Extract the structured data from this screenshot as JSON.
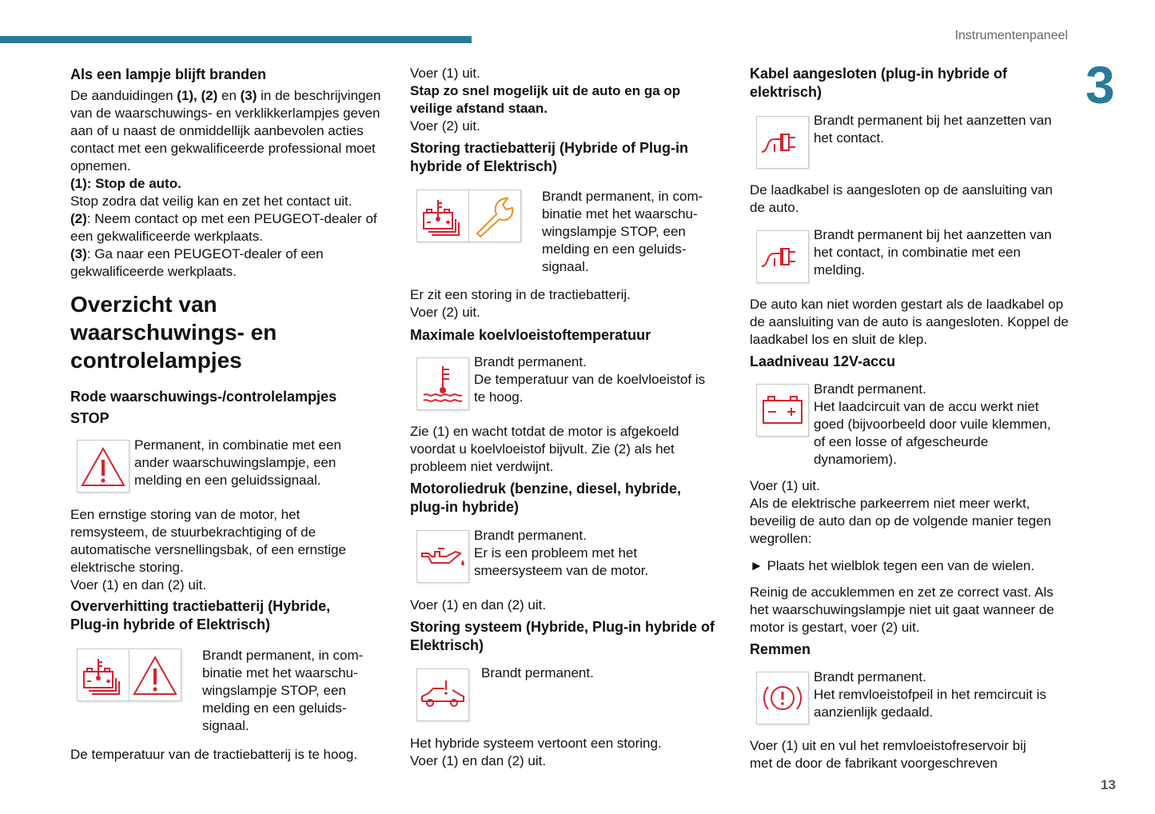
{
  "header": {
    "section": "Instrumentenpaneel",
    "chapter": "3",
    "page_number": "13",
    "accent": "#2a7a99"
  },
  "col1": {
    "h1": "Als een lampje blijft branden",
    "intro": {
      "a": "De aanduidingen ",
      "b1": "(1), (2)",
      "c": " en ",
      "b2": "(3)",
      "d": " in de beschrijvingen van de waarschuwings- en verklikkerlampjes geven aan of u naast de onmiddellijk aanbevolen acties contact met een gekwalificeerde professional moet opnemen."
    },
    "r1": {
      "b": "(1): Stop de auto.",
      "t": "Stop zodra dat veilig kan en zet het contact uit."
    },
    "r2": {
      "b": "(2)",
      "t": ": Neem contact op met een PEUGEOT-dealer of een gekwalificeerde werkplaats."
    },
    "r3": {
      "b": "(3)",
      "t": ": Ga naar een PEUGEOT-dealer of een gekwalificeerde werkplaats."
    },
    "title": "Overzicht van waarschuwings- en controlelampjes",
    "h2": "Rode waarschuwings-/controlelampjes",
    "h3": "STOP",
    "stop_desc": "Permanent, in combinatie met een ander waarschuwingslampje, een melding en een geluidssignaal.",
    "stop_p": "Een ernstige storing van de motor, het remsysteem, de stuurbekrachtiging of de automatische versnellingsbak, of een ernstige elektrische storing.",
    "stop_action": "Voer (1) en dan (2) uit.",
    "h4": "Oververhitting tractiebatterij (Hybride, Plug-in hybride of Elektrisch)",
    "overheat_desc": "Brandt permanent, in com-binatie met het waarschu-wingslampje STOP, een melding en een geluids-signaal.",
    "overheat_p": "De temperatuur van de tractiebatterij is te hoog."
  },
  "col2": {
    "a1": "Voer (1) uit.",
    "a2": "Stap zo snel mogelijk uit de auto en ga op veilige afstand staan.",
    "a3": "Voer (2) uit.",
    "h1": "Storing tractiebatterij (Hybride of Plug-in hybride of Elektrisch)",
    "d1": "Brandt permanent, in com-binatie met het waarschu-wingslampje STOP, een melding en een geluids-signaal.",
    "p1": "Er zit een storing in de tractiebatterij.",
    "p1b": "Voer (2) uit.",
    "h2": "Maximale koelvloeistoftemperatuur",
    "d2": "Brandt permanent.",
    "d2b": "De temperatuur van de koelvloeistof is te hoog.",
    "p2": "Zie (1) en wacht totdat de motor is afgekoeld voordat u koelvloeistof bijvult. Zie (2) als het probleem niet verdwijnt.",
    "h3": "Motoroliedruk (benzine, diesel, hybride, plug-in hybride)",
    "d3": "Brandt permanent.",
    "d3b": "Er is een probleem met het smeersysteem van de motor.",
    "p3": "Voer (1) en dan (2) uit.",
    "h4": "Storing systeem (Hybride, Plug-in hybride of Elektrisch)",
    "d4": "Brandt permanent.",
    "p4": "Het hybride systeem vertoont een storing.",
    "p4b": "Voer (1) en dan (2) uit."
  },
  "col3": {
    "h1": "Kabel aangesloten (plug-in hybride of elektrisch)",
    "d1": "Brandt permanent bij het aanzetten van het contact.",
    "p1": "De laadkabel is aangesloten op de aansluiting van de auto.",
    "d2": "Brandt permanent bij het aanzetten van het contact, in combinatie met een melding.",
    "p2": "De auto kan niet worden gestart als de laadkabel op de aansluiting van de auto is aangesloten. Koppel de laadkabel los en sluit de klep.",
    "h2": "Laadniveau 12V-accu",
    "d3": "Brandt permanent.",
    "d3b": "Het laadcircuit van de accu werkt niet goed (bijvoorbeeld door vuile klemmen, of een losse of afgescheurde dynamoriem).",
    "p3": "Voer (1) uit.",
    "p3b": "Als de elektrische parkeerrem niet meer werkt, beveilig de auto dan op de volgende manier tegen wegrollen:",
    "bullet": "►",
    "bullet_text": "Plaats het wielblok tegen een van de wielen.",
    "p4": "Reinig de accuklemmen en zet ze correct vast. Als het waarschuwingslampje niet uit gaat wanneer de motor is gestart, voer (2) uit.",
    "h3": "Remmen",
    "d4": "Brandt permanent.",
    "d4b": "Het remvloeistofpeil in het remcircuit is aanzienlijk gedaald.",
    "p5": "Voer (1) uit en vul het remvloeistofreservoir bij met de door de fabrikant voorgeschreven"
  },
  "icons": {
    "red": "#d7232e",
    "orange": "#e8902a"
  }
}
